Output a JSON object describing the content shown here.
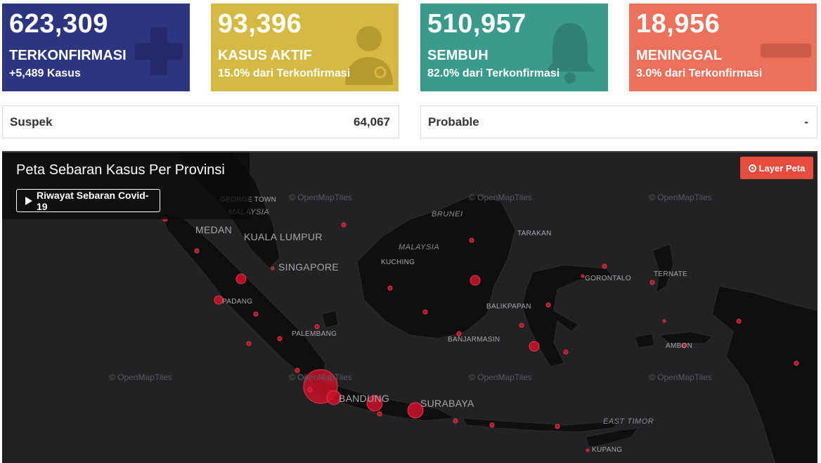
{
  "cards": [
    {
      "value": "623,309",
      "label": "TERKONFIRMASI",
      "sub": "+5,489 Kasus",
      "color": "#2c3580",
      "icon": "plus-icon"
    },
    {
      "value": "93,396",
      "label": "KASUS AKTIF",
      "sub": "15.0% dari Terkonfirmasi",
      "color": "#d4b943",
      "icon": "doctor-icon"
    },
    {
      "value": "510,957",
      "label": "SEMBUH",
      "sub": "82.0% dari Terkonfirmasi",
      "color": "#3a9b8c",
      "icon": "bell-icon"
    },
    {
      "value": "18,956",
      "label": "MENINGGAL",
      "sub": "3.0% dari Terkonfirmasi",
      "color": "#ec705a",
      "icon": "minus-icon"
    }
  ],
  "suspek": {
    "label": "Suspek",
    "value": "64,067"
  },
  "probable": {
    "label": "Probable",
    "value": "-"
  },
  "map": {
    "title": "Peta Sebaran Kasus Per Provinsi",
    "history_button": "Riwayat Sebaran Covid-19",
    "layer_button": "Layer Peta",
    "attribution": "© OpenMapTiles",
    "cities": {
      "george_town": "GEORGE TOWN",
      "medan": "MEDAN",
      "kuala_lumpur": "KUALA LUMPUR",
      "singapore": "SINGAPORE",
      "kuching": "KUCHING",
      "tarakan": "TARAKAN",
      "gorontalo": "GORONTALO",
      "ternate": "TERNATE",
      "balikpapan": "BALIKPAPAN",
      "padang": "PADANG",
      "palembang": "PALEMBANG",
      "banjarmasin": "BANJARMASIN",
      "ambon": "AMBON",
      "bandung": "BANDUNG",
      "surabaya": "SURABAYA",
      "kupang": "KUPANG"
    },
    "countries": {
      "malaysia_w": "MALAYSIA",
      "malaysia_e": "MALAYSIA",
      "brunei": "BRUNEI",
      "east_timor": "EAST TIMOR"
    }
  }
}
